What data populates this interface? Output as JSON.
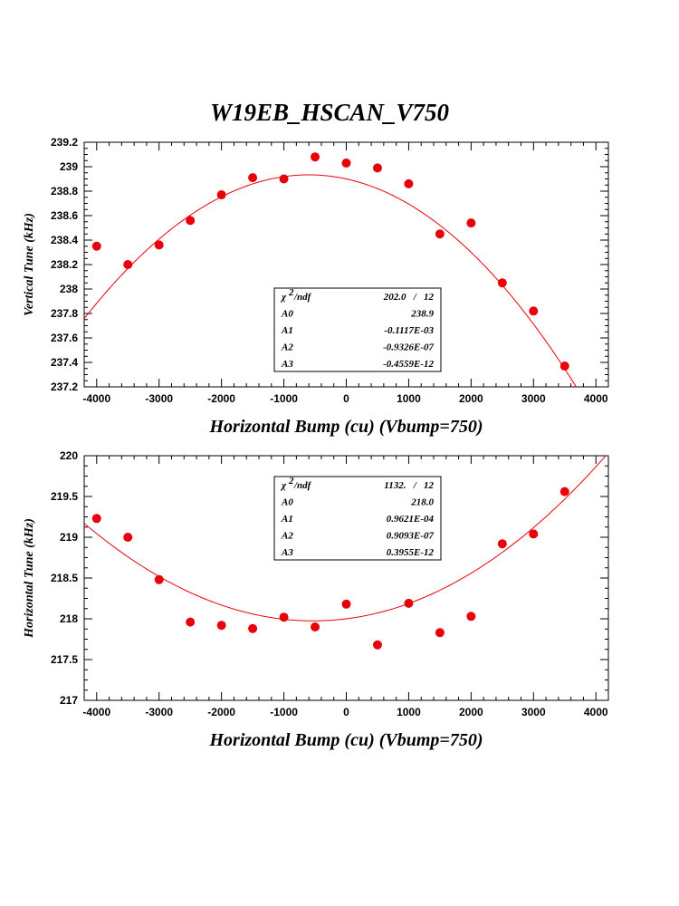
{
  "title": "W19EB_HSCAN_V750",
  "colors": {
    "marker": "#e8000b",
    "curve": "#e8000b",
    "axis": "#000000"
  },
  "chart_data": [
    {
      "id": "vertical",
      "type": "scatter",
      "xlabel": "Horizontal Bump (cu) (Vbump=750)",
      "ylabel": "Vertical Tune (kHz)",
      "xlim": [
        -4200,
        4200
      ],
      "ylim": [
        237.2,
        239.2
      ],
      "xticks": [
        -4000,
        -3000,
        -2000,
        -1000,
        0,
        1000,
        2000,
        3000,
        4000
      ],
      "xtick_labels": [
        "-4000",
        "-3000",
        "-2000",
        "-1000",
        "0",
        "1000",
        "2000",
        "3000",
        "4000"
      ],
      "yticks": [
        237.2,
        237.4,
        237.6,
        237.8,
        238,
        238.2,
        238.4,
        238.6,
        238.8,
        239,
        239.2
      ],
      "ytick_labels": [
        "237.2",
        "237.4",
        "237.6",
        "237.8",
        "238",
        "238.2",
        "238.4",
        "238.6",
        "238.8",
        "239",
        "239.2"
      ],
      "points": {
        "x": [
          -4000,
          -3500,
          -3000,
          -2500,
          -2000,
          -1500,
          -1000,
          -500,
          0,
          500,
          1000,
          1500,
          2000,
          2500,
          3000,
          3500
        ],
        "y": [
          238.35,
          238.2,
          238.36,
          238.56,
          238.77,
          238.91,
          238.9,
          239.08,
          239.03,
          238.99,
          238.86,
          238.45,
          238.54,
          238.05,
          237.82,
          237.37
        ]
      },
      "fit": {
        "A0": 238.9,
        "A1": -0.0001117,
        "A2": -9.326e-08,
        "A3": -4.559e-13
      },
      "stats": {
        "chi_label": "/ndf",
        "chi_value": "202.0   /   12",
        "rows": [
          {
            "name": "A0",
            "value": "238.9"
          },
          {
            "name": "A1",
            "value": "-0.1117E-03"
          },
          {
            "name": "A2",
            "value": "-0.9326E-07"
          },
          {
            "name": "A3",
            "value": "-0.4559E-12"
          }
        ]
      }
    },
    {
      "id": "horizontal",
      "type": "scatter",
      "xlabel": "Horizontal Bump (cu) (Vbump=750)",
      "ylabel": "Horizontal Tune (kHz)",
      "xlim": [
        -4200,
        4200
      ],
      "ylim": [
        217,
        220
      ],
      "xticks": [
        -4000,
        -3000,
        -2000,
        -1000,
        0,
        1000,
        2000,
        3000,
        4000
      ],
      "xtick_labels": [
        "-4000",
        "-3000",
        "-2000",
        "-1000",
        "0",
        "1000",
        "2000",
        "3000",
        "4000"
      ],
      "yticks": [
        217,
        217.5,
        218,
        218.5,
        219,
        219.5,
        220
      ],
      "ytick_labels": [
        "217",
        "217.5",
        "218",
        "218.5",
        "219",
        "219.5",
        "220"
      ],
      "points": {
        "x": [
          -4000,
          -3500,
          -3000,
          -2500,
          -2000,
          -1500,
          -1000,
          -500,
          0,
          500,
          1000,
          1500,
          2000,
          2500,
          3000,
          3500
        ],
        "y": [
          219.23,
          219.0,
          218.48,
          217.96,
          217.92,
          217.88,
          218.02,
          217.9,
          218.18,
          217.68,
          218.19,
          217.83,
          218.03,
          218.92,
          219.04,
          219.56
        ]
      },
      "fit": {
        "A0": 218.0,
        "A1": 9.621e-05,
        "A2": 9.093e-08,
        "A3": 3.955e-13
      },
      "stats": {
        "chi_label": "/ndf",
        "chi_value": "1132.   /   12",
        "rows": [
          {
            "name": "A0",
            "value": "218.0"
          },
          {
            "name": "A1",
            "value": "0.9621E-04"
          },
          {
            "name": "A2",
            "value": "0.9093E-07"
          },
          {
            "name": "A3",
            "value": "0.3955E-12"
          }
        ]
      }
    }
  ]
}
